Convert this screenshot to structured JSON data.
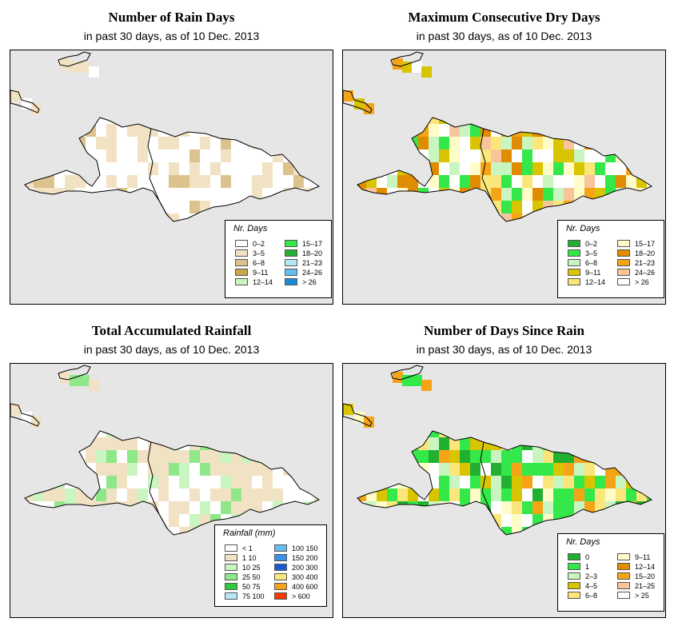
{
  "panels": [
    {
      "title": "Number of Rain Days",
      "subtitle": "in past 30 days, as of  10 Dec. 2013",
      "legend_title": "Nr. Days",
      "legend": [
        {
          "label": "0–2",
          "color": "#ffffff"
        },
        {
          "label": "3–5",
          "color": "#f2e2c4"
        },
        {
          "label": "6–8",
          "color": "#dcc38e"
        },
        {
          "label": "9–11",
          "color": "#c8a84a"
        },
        {
          "label": "12–14",
          "color": "#c8f5c0"
        },
        {
          "label": "15–17",
          "color": "#34e84a"
        },
        {
          "label": "18–20",
          "color": "#22b030"
        },
        {
          "label": "21–23",
          "color": "#b4e8f6"
        },
        {
          "label": "24–26",
          "color": "#64bcf0"
        },
        {
          "label": "> 26",
          "color": "#1a8ad2"
        }
      ]
    },
    {
      "title": "Maximum Consecutive Dry Days",
      "subtitle": "in past 30 days, as of  10 Dec. 2013",
      "legend_title": "Nr. Days",
      "legend": [
        {
          "label": "0–2",
          "color": "#22b030"
        },
        {
          "label": "3–5",
          "color": "#34e84a"
        },
        {
          "label": "6–8",
          "color": "#c8f5c0"
        },
        {
          "label": "9–11",
          "color": "#d8c400"
        },
        {
          "label": "12–14",
          "color": "#fae67a"
        },
        {
          "label": "15–17",
          "color": "#fffcc8"
        },
        {
          "label": "18–20",
          "color": "#e08c00"
        },
        {
          "label": "21–23",
          "color": "#f5a418"
        },
        {
          "label": "24–26",
          "color": "#f8c49a"
        },
        {
          "label": "> 26",
          "color": "#ffffff"
        }
      ]
    },
    {
      "title": "Total Accumulated Rainfall",
      "subtitle": "in past 30 days, as of  10 Dec. 2013",
      "legend_title": "Rainfall (mm)",
      "legend": [
        {
          "label": "< 1",
          "color": "#ffffff"
        },
        {
          "label": "1    10",
          "color": "#f2e2c4"
        },
        {
          "label": "10    25",
          "color": "#c8f5c0"
        },
        {
          "label": "25    50",
          "color": "#8ee88a"
        },
        {
          "label": "50    75",
          "color": "#34c83e"
        },
        {
          "label": "75  100",
          "color": "#b4e8f6"
        },
        {
          "label": "100  150",
          "color": "#64bcf0"
        },
        {
          "label": "150  200",
          "color": "#3c8ee6"
        },
        {
          "label": "200  300",
          "color": "#1a5ad2"
        },
        {
          "label": "300  400",
          "color": "#fae67a"
        },
        {
          "label": "400  600",
          "color": "#f5a418"
        },
        {
          "label": "> 600",
          "color": "#f03c00"
        }
      ]
    },
    {
      "title": "Number of Days Since Rain",
      "subtitle": "in past 30 days, as of  10 Dec. 2013",
      "legend_title": "Nr. Days",
      "legend": [
        {
          "label": "0",
          "color": "#22b030"
        },
        {
          "label": "1",
          "color": "#34e84a"
        },
        {
          "label": "2–3",
          "color": "#c8f5c0"
        },
        {
          "label": "4–5",
          "color": "#d8c400"
        },
        {
          "label": "6–8",
          "color": "#fae67a"
        },
        {
          "label": "9–11",
          "color": "#fffcc8"
        },
        {
          "label": "12–14",
          "color": "#e08c00"
        },
        {
          "label": "15–20",
          "color": "#f5a418"
        },
        {
          "label": "21–25",
          "color": "#f8c49a"
        },
        {
          "label": "> 25",
          "color": "#ffffff"
        }
      ]
    }
  ]
}
